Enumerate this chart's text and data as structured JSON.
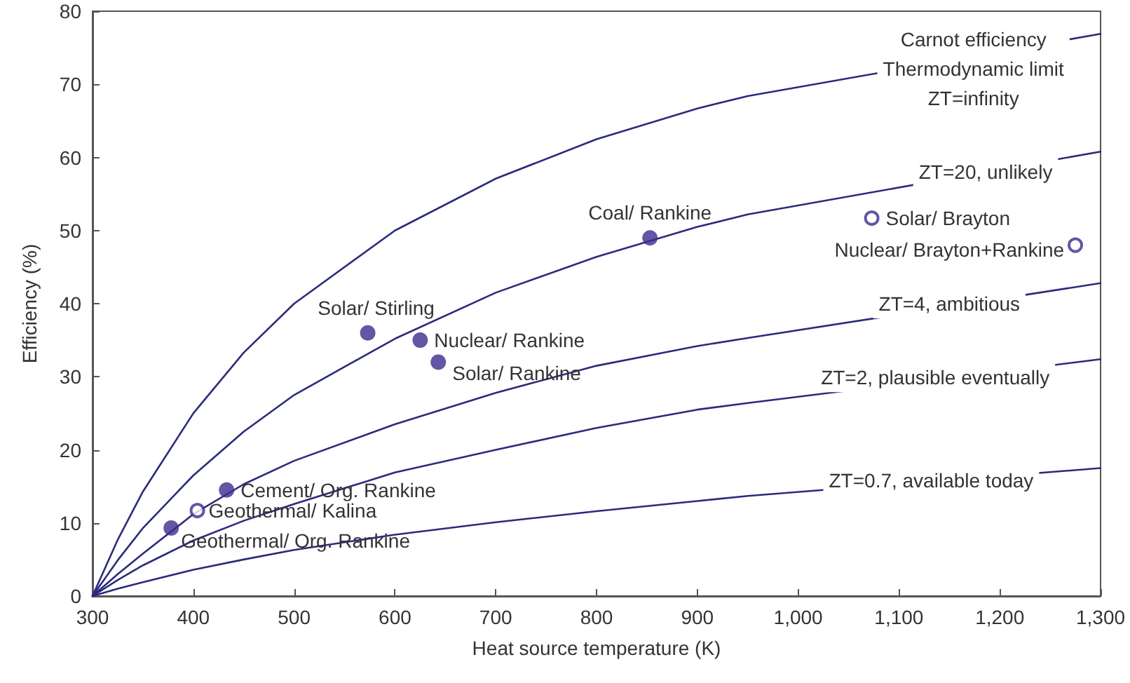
{
  "chart_data": {
    "type": "line",
    "xlabel": "Heat source temperature (K)",
    "ylabel": "Efficiency (%)",
    "xlim": [
      300,
      1300
    ],
    "ylim": [
      0,
      80
    ],
    "xticks": [
      300,
      400,
      500,
      600,
      700,
      800,
      900,
      {
        "value": 1000,
        "label": "1,000"
      },
      {
        "value": 1100,
        "label": "1,100"
      },
      {
        "value": 1200,
        "label": "1,200"
      },
      {
        "value": 1300,
        "label": "1,300"
      }
    ],
    "yticks": [
      0,
      10,
      20,
      30,
      40,
      50,
      60,
      70,
      80
    ],
    "grid": false,
    "marker": "none",
    "line_style": "solid",
    "x": [
      300,
      325,
      350,
      400,
      450,
      500,
      600,
      700,
      800,
      900,
      950,
      1300
    ],
    "series": [
      {
        "color": "#2b2b7c",
        "values": [
          0,
          7.7,
          14.3,
          25,
          33.3,
          40,
          50,
          57.1,
          62.5,
          66.7,
          68.4,
          76.9
        ]
      },
      {
        "color": "#2b2b7c",
        "values": [
          0,
          4.9,
          9.3,
          16.5,
          22.5,
          27.5,
          35.2,
          41.5,
          46.4,
          50.5,
          52.2,
          60.8
        ]
      },
      {
        "color": "#2b2b7c",
        "values": [
          0,
          3.0,
          5.8,
          11.2,
          15.3,
          18.5,
          23.5,
          27.8,
          31.5,
          34.2,
          35.3,
          42.8
        ]
      },
      {
        "color": "#2b2b7c",
        "values": [
          0,
          2.2,
          4.2,
          7.6,
          10.3,
          12.6,
          16.9,
          20.0,
          23.0,
          25.5,
          26.4,
          32.4
        ]
      },
      {
        "color": "#2b2b7c",
        "values": [
          0,
          1.0,
          1.9,
          3.6,
          5.0,
          6.3,
          8.4,
          10.1,
          11.6,
          13.0,
          13.7,
          17.5
        ]
      },
      {
        "type": "scatter",
        "marker": "circle",
        "color": "#3d2b8f",
        "x": [
          378,
          433,
          573,
          625,
          643,
          853
        ],
        "values": [
          9.3,
          14.5,
          36,
          35,
          32,
          49
        ]
      },
      {
        "type": "scatter",
        "marker": "open circle",
        "color": "#3d2b8f",
        "x": [
          404,
          1073,
          1275
        ],
        "values": [
          11.7,
          51.7,
          48
        ]
      }
    ],
    "annotations": [
      {
        "text": "Carnot efficiency\nThermodynamic limit\nZT=infinity",
        "x": 1160,
        "y": 74.1
      },
      {
        "text": "ZT=20, unlikely",
        "x": 1186,
        "y": 58.6
      },
      {
        "text": "ZT=4, ambitious",
        "x": 1150,
        "y": 40
      },
      {
        "text": "ZT=2, plausible eventually",
        "x": 1136,
        "y": 29.9
      },
      {
        "text": "ZT=0.7, available today",
        "x": 1132,
        "y": 15.8
      },
      {
        "text": "Coal/ Rankine",
        "x": 853,
        "y": 49
      },
      {
        "text": "Solar/ Brayton",
        "x": 1073,
        "y": 51.7
      },
      {
        "text": "Nuclear/ Brayton+Rankine",
        "x": 1275,
        "y": 48
      },
      {
        "text": "Solar/ Stirling",
        "x": 573,
        "y": 36
      },
      {
        "text": "Nuclear/ Rankine",
        "x": 625,
        "y": 35
      },
      {
        "text": "Solar/ Rankine",
        "x": 643,
        "y": 32
      },
      {
        "text": "Cement/ Org. Rankine",
        "x": 433,
        "y": 14.5
      },
      {
        "text": "Geothermal/ Kalina",
        "x": 404,
        "y": 11.7
      },
      {
        "text": "Geothermal/ Org. Rankine",
        "x": 378,
        "y": 9.3
      }
    ]
  }
}
